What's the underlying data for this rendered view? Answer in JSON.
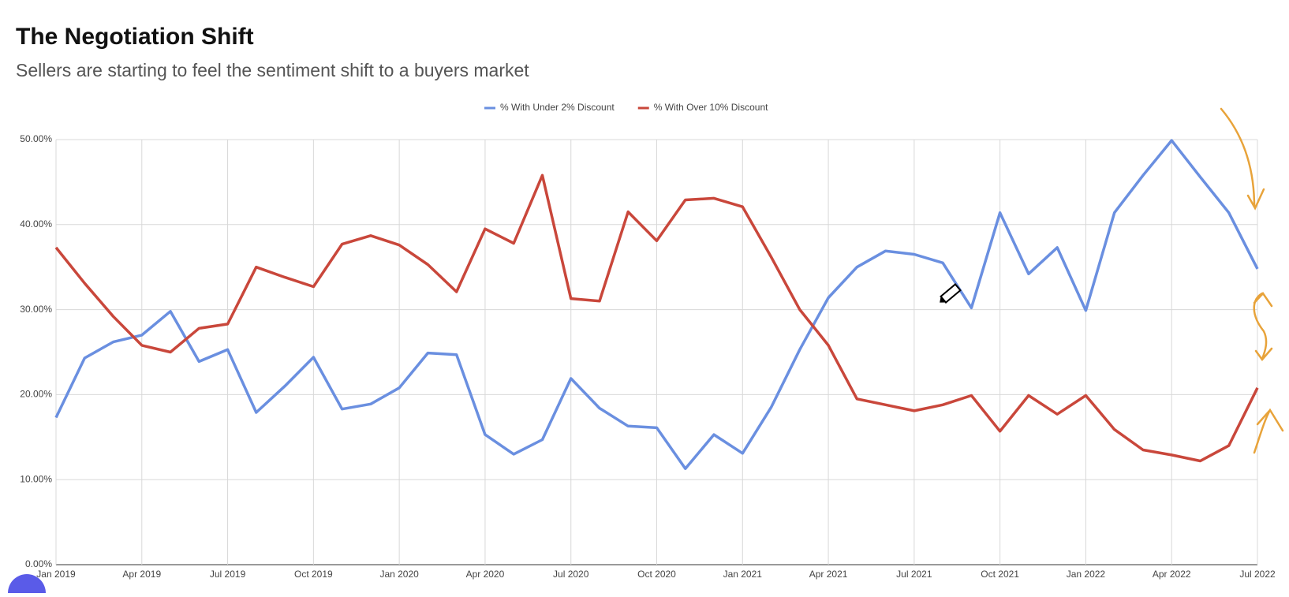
{
  "chart_data": {
    "type": "line",
    "title": "The Negotiation Shift",
    "subtitle": "Sellers are starting to feel the sentiment shift to a buyers market",
    "categories": [
      "Jan 2019",
      null,
      null,
      "Apr 2019",
      null,
      null,
      "Jul 2019",
      null,
      null,
      "Oct 2019",
      null,
      null,
      "Jan 2020",
      null,
      null,
      "Apr 2020",
      null,
      null,
      "Jul 2020",
      null,
      null,
      "Oct 2020",
      null,
      null,
      "Jan 2021",
      null,
      null,
      "Apr 2021",
      null,
      null,
      "Jul 2021",
      null,
      null,
      "Oct 2021",
      null,
      null,
      "Jan 2022",
      null,
      null,
      "Apr 2022",
      null,
      null,
      "Jul 2022"
    ],
    "series": [
      {
        "name": "% With Under 2% Discount",
        "color": "#6a8fe0",
        "values": [
          17.3,
          24.3,
          26.2,
          27.0,
          29.8,
          23.9,
          25.3,
          17.9,
          21.0,
          24.4,
          18.3,
          18.9,
          20.8,
          24.9,
          24.7,
          15.3,
          13.0,
          14.7,
          21.9,
          18.4,
          16.3,
          16.1,
          11.3,
          15.3,
          13.1,
          18.5,
          25.3,
          31.4,
          35.0,
          36.9,
          36.5,
          35.5,
          30.2,
          41.4,
          34.2,
          37.3,
          29.9,
          41.4,
          45.8,
          49.9,
          45.6,
          41.4,
          34.8
        ]
      },
      {
        "name": "% With Over 10% Discount",
        "color": "#c9473b",
        "values": [
          37.3,
          33.1,
          29.2,
          25.8,
          25.0,
          27.8,
          28.3,
          35.0,
          33.8,
          32.7,
          37.7,
          38.7,
          37.6,
          35.3,
          32.1,
          39.5,
          37.8,
          45.8,
          31.3,
          31.0,
          41.5,
          38.1,
          42.9,
          43.1,
          42.1,
          36.2,
          30.0,
          25.8,
          19.5,
          18.8,
          18.1,
          18.8,
          19.9,
          15.7,
          19.9,
          17.7,
          19.9,
          15.9,
          13.5,
          12.9,
          12.2,
          14.0,
          20.8
        ]
      }
    ],
    "ylim": [
      0,
      50
    ],
    "yticks": [
      {
        "value": 0,
        "label": "0.00%"
      },
      {
        "value": 10,
        "label": "10.00%"
      },
      {
        "value": 20,
        "label": "20.00%"
      },
      {
        "value": 30,
        "label": "30.00%"
      },
      {
        "value": 40,
        "label": "40.00%"
      },
      {
        "value": 50,
        "label": "50.00%"
      }
    ],
    "grid": true,
    "legend": "top"
  }
}
